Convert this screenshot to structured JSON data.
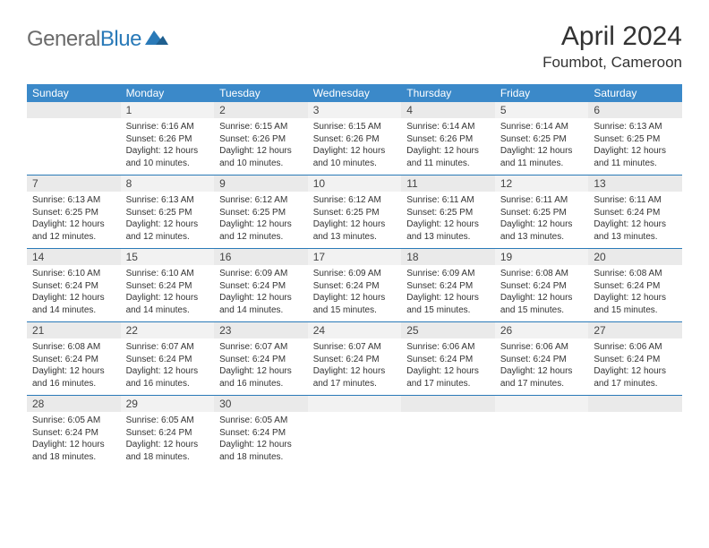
{
  "logo": {
    "gray": "General",
    "blue": "Blue"
  },
  "title": "April 2024",
  "location": "Foumbot, Cameroon",
  "colors": {
    "header_bg": "#3b89c9",
    "header_fg": "#ffffff",
    "divider": "#2a7ab8",
    "daynum_bg_odd": "#eaeaea",
    "daynum_bg_even": "#f2f2f2",
    "logo_gray": "#6b6b6b",
    "logo_blue": "#2a7ab8"
  },
  "day_headers": [
    "Sunday",
    "Monday",
    "Tuesday",
    "Wednesday",
    "Thursday",
    "Friday",
    "Saturday"
  ],
  "weeks": [
    [
      null,
      {
        "n": "1",
        "sr": "6:16 AM",
        "ss": "6:26 PM",
        "dl": "12 hours and 10 minutes."
      },
      {
        "n": "2",
        "sr": "6:15 AM",
        "ss": "6:26 PM",
        "dl": "12 hours and 10 minutes."
      },
      {
        "n": "3",
        "sr": "6:15 AM",
        "ss": "6:26 PM",
        "dl": "12 hours and 10 minutes."
      },
      {
        "n": "4",
        "sr": "6:14 AM",
        "ss": "6:26 PM",
        "dl": "12 hours and 11 minutes."
      },
      {
        "n": "5",
        "sr": "6:14 AM",
        "ss": "6:25 PM",
        "dl": "12 hours and 11 minutes."
      },
      {
        "n": "6",
        "sr": "6:13 AM",
        "ss": "6:25 PM",
        "dl": "12 hours and 11 minutes."
      }
    ],
    [
      {
        "n": "7",
        "sr": "6:13 AM",
        "ss": "6:25 PM",
        "dl": "12 hours and 12 minutes."
      },
      {
        "n": "8",
        "sr": "6:13 AM",
        "ss": "6:25 PM",
        "dl": "12 hours and 12 minutes."
      },
      {
        "n": "9",
        "sr": "6:12 AM",
        "ss": "6:25 PM",
        "dl": "12 hours and 12 minutes."
      },
      {
        "n": "10",
        "sr": "6:12 AM",
        "ss": "6:25 PM",
        "dl": "12 hours and 13 minutes."
      },
      {
        "n": "11",
        "sr": "6:11 AM",
        "ss": "6:25 PM",
        "dl": "12 hours and 13 minutes."
      },
      {
        "n": "12",
        "sr": "6:11 AM",
        "ss": "6:25 PM",
        "dl": "12 hours and 13 minutes."
      },
      {
        "n": "13",
        "sr": "6:11 AM",
        "ss": "6:24 PM",
        "dl": "12 hours and 13 minutes."
      }
    ],
    [
      {
        "n": "14",
        "sr": "6:10 AM",
        "ss": "6:24 PM",
        "dl": "12 hours and 14 minutes."
      },
      {
        "n": "15",
        "sr": "6:10 AM",
        "ss": "6:24 PM",
        "dl": "12 hours and 14 minutes."
      },
      {
        "n": "16",
        "sr": "6:09 AM",
        "ss": "6:24 PM",
        "dl": "12 hours and 14 minutes."
      },
      {
        "n": "17",
        "sr": "6:09 AM",
        "ss": "6:24 PM",
        "dl": "12 hours and 15 minutes."
      },
      {
        "n": "18",
        "sr": "6:09 AM",
        "ss": "6:24 PM",
        "dl": "12 hours and 15 minutes."
      },
      {
        "n": "19",
        "sr": "6:08 AM",
        "ss": "6:24 PM",
        "dl": "12 hours and 15 minutes."
      },
      {
        "n": "20",
        "sr": "6:08 AM",
        "ss": "6:24 PM",
        "dl": "12 hours and 15 minutes."
      }
    ],
    [
      {
        "n": "21",
        "sr": "6:08 AM",
        "ss": "6:24 PM",
        "dl": "12 hours and 16 minutes."
      },
      {
        "n": "22",
        "sr": "6:07 AM",
        "ss": "6:24 PM",
        "dl": "12 hours and 16 minutes."
      },
      {
        "n": "23",
        "sr": "6:07 AM",
        "ss": "6:24 PM",
        "dl": "12 hours and 16 minutes."
      },
      {
        "n": "24",
        "sr": "6:07 AM",
        "ss": "6:24 PM",
        "dl": "12 hours and 17 minutes."
      },
      {
        "n": "25",
        "sr": "6:06 AM",
        "ss": "6:24 PM",
        "dl": "12 hours and 17 minutes."
      },
      {
        "n": "26",
        "sr": "6:06 AM",
        "ss": "6:24 PM",
        "dl": "12 hours and 17 minutes."
      },
      {
        "n": "27",
        "sr": "6:06 AM",
        "ss": "6:24 PM",
        "dl": "12 hours and 17 minutes."
      }
    ],
    [
      {
        "n": "28",
        "sr": "6:05 AM",
        "ss": "6:24 PM",
        "dl": "12 hours and 18 minutes."
      },
      {
        "n": "29",
        "sr": "6:05 AM",
        "ss": "6:24 PM",
        "dl": "12 hours and 18 minutes."
      },
      {
        "n": "30",
        "sr": "6:05 AM",
        "ss": "6:24 PM",
        "dl": "12 hours and 18 minutes."
      },
      null,
      null,
      null,
      null
    ]
  ],
  "labels": {
    "sunrise": "Sunrise:",
    "sunset": "Sunset:",
    "daylight": "Daylight:"
  }
}
